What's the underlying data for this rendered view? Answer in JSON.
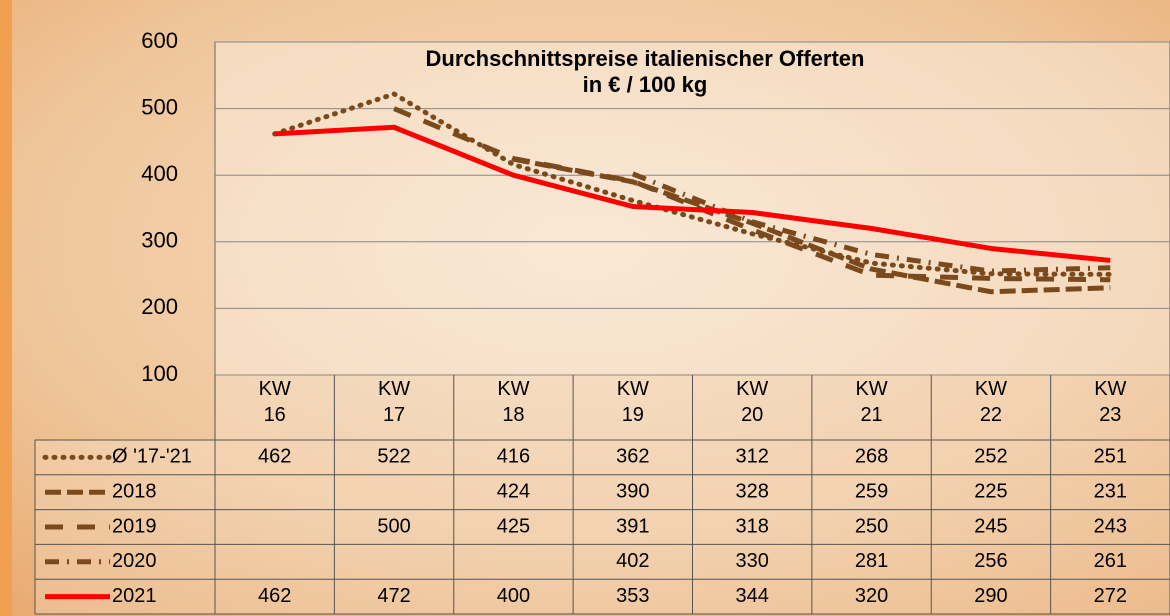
{
  "chart_data": {
    "type": "line",
    "title": "Durchschnittspreise italienischer Offerten",
    "subtitle": "in € / 100 kg",
    "categories": [
      "KW 16",
      "KW 17",
      "KW 18",
      "KW 19",
      "KW 20",
      "KW 21",
      "KW 22",
      "KW 23"
    ],
    "ylim": [
      100,
      600
    ],
    "yticks": [
      100,
      200,
      300,
      400,
      500,
      600
    ],
    "grid": true,
    "series": [
      {
        "name": "Ø '17-'21",
        "color": "#7b4a1c",
        "dash": "1 8",
        "values": [
          462,
          522,
          416,
          362,
          312,
          268,
          252,
          251
        ]
      },
      {
        "name": "2018",
        "color": "#7b4a1c",
        "dash": "16 6",
        "values": [
          null,
          null,
          424,
          390,
          328,
          259,
          225,
          231
        ]
      },
      {
        "name": "2019",
        "color": "#7b4a1c",
        "dash": "18 14",
        "values": [
          null,
          500,
          425,
          391,
          318,
          250,
          245,
          243
        ]
      },
      {
        "name": "2020",
        "color": "#7b4a1c",
        "dash": "14 8 2 8",
        "values": [
          null,
          null,
          null,
          402,
          330,
          281,
          256,
          261
        ]
      },
      {
        "name": "2021",
        "color": "#ff0000",
        "dash": "",
        "values": [
          462,
          472,
          400,
          353,
          344,
          320,
          290,
          272
        ]
      }
    ]
  }
}
